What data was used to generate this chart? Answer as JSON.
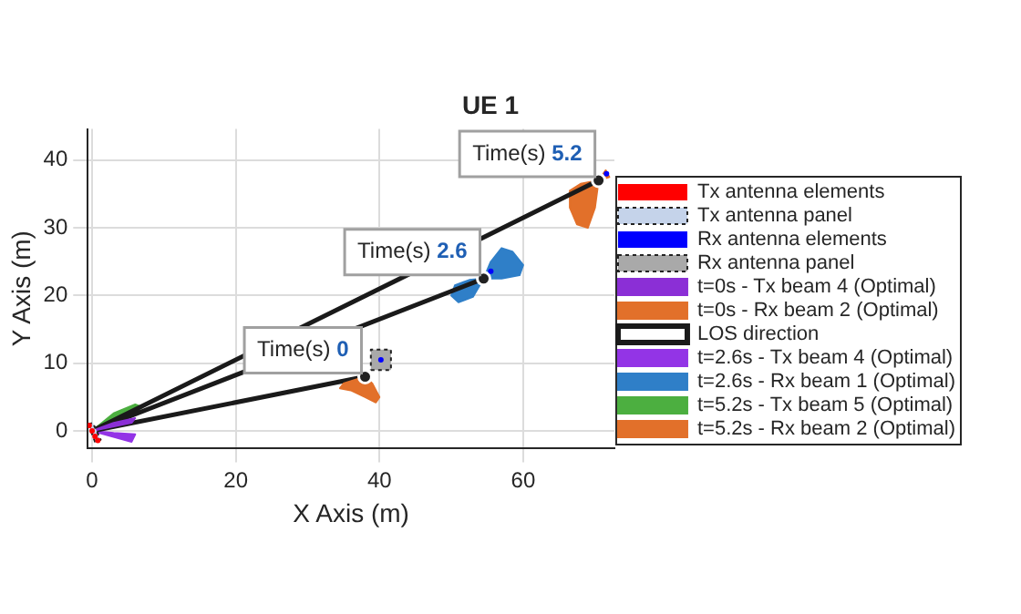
{
  "chart_data": {
    "type": "line",
    "title": "UE 1",
    "xlabel": "X Axis (m)",
    "ylabel": "Y Axis (m)",
    "xlim": [
      -0.6,
      72.7
    ],
    "ylim": [
      -2.5,
      44.6
    ],
    "xticks": [
      0,
      20,
      40,
      60
    ],
    "yticks": [
      0,
      10,
      20,
      30,
      40
    ],
    "grid": true,
    "legend": "right",
    "series": [
      {
        "name": "Tx antenna elements",
        "type": "scatter",
        "marker": "circle",
        "color": "#ff0000",
        "x": [
          -0.4,
          0,
          0.4,
          0.8
        ],
        "values": [
          0.8,
          0,
          -0.8,
          -1.4
        ]
      },
      {
        "name": "Tx antenna panel",
        "type": "area",
        "line_style": "dotted",
        "color": "#c5d3ea",
        "x": [
          -0.5,
          0.1,
          1.2,
          0.4,
          -0.5
        ],
        "values": [
          1,
          1.2,
          -1.3,
          -1.6,
          1
        ]
      },
      {
        "name": "Rx antenna elements",
        "type": "scatter",
        "marker": "circle",
        "color": "#0000ff",
        "x": [
          40.2,
          55.5,
          71.6
        ],
        "values": [
          10.5,
          23.6,
          38
        ]
      },
      {
        "name": "Rx antenna panel",
        "type": "area",
        "line_style": "dotted",
        "color": "#a9a9a9",
        "x": [
          38.8,
          41.6,
          41.6,
          38.8,
          38.8
        ],
        "values": [
          9,
          9,
          12,
          12,
          9
        ]
      },
      {
        "name": "t=0s - Tx beam 4 (Optimal)",
        "type": "area",
        "color": "#8b2fd6",
        "x": [
          0,
          3,
          6,
          5.5,
          0
        ],
        "values": [
          0,
          1.2,
          1.9,
          1.2,
          0
        ]
      },
      {
        "name": "t=0s - Rx beam 2 (Optimal)",
        "type": "area",
        "color": "#e2702a",
        "x": [
          38,
          35,
          34.5,
          36,
          38,
          39.5,
          40,
          39,
          38
        ],
        "values": [
          8,
          7,
          6.3,
          6,
          5,
          4.2,
          5,
          7,
          8
        ]
      },
      {
        "name": "LOS direction",
        "color": "#1a1a1a",
        "x": [
          0,
          38,
          null,
          0,
          54.5,
          null,
          0,
          70.5
        ],
        "values": [
          0,
          8,
          null,
          0,
          22.5,
          null,
          0,
          37
        ]
      },
      {
        "name": "t=2.6s - Tx beam 4 (Optimal)",
        "type": "area",
        "color": "#9334e6",
        "x": [
          0,
          3,
          6,
          5.5,
          0
        ],
        "values": [
          0,
          -0.3,
          -0.5,
          -1.6,
          0
        ]
      },
      {
        "name": "t=2.6s - Rx beam 1 (Optimal)",
        "type": "area",
        "color": "#2f7fc8",
        "x": [
          54.5,
          52.5,
          50.5,
          50,
          51,
          53,
          54.5,
          55.5,
          57,
          58.5,
          60,
          59.5,
          57,
          54.5
        ],
        "values": [
          22.5,
          22.3,
          21.5,
          20,
          19,
          19.8,
          22.5,
          25,
          27,
          26.5,
          24.5,
          23,
          22.5,
          22.5
        ]
      },
      {
        "name": "t=5.2s - Tx beam 5 (Optimal)",
        "type": "area",
        "color": "#4caf40",
        "x": [
          0,
          3,
          6,
          7,
          5,
          0
        ],
        "values": [
          0,
          2.6,
          3.9,
          3.5,
          2.4,
          0
        ]
      },
      {
        "name": "t=5.2s - Rx beam 2 (Optimal)",
        "type": "area",
        "color": "#e2702a",
        "x": [
          70.5,
          68,
          66.5,
          66.5,
          67.5,
          69,
          70,
          70.5,
          72,
          71.5,
          70.5
        ],
        "values": [
          37,
          36.5,
          35.5,
          33,
          30.5,
          30,
          33,
          37,
          37.5,
          38.5,
          37
        ]
      },
      {
        "type": "scatter",
        "marker": "circle",
        "color": "#222222",
        "x": [
          38,
          54.5,
          70.5
        ],
        "values": [
          8,
          22.5,
          37
        ]
      }
    ],
    "annotations": [
      {
        "text": "Time(s) 0",
        "x": 38,
        "y": 8
      },
      {
        "text": "Time(s) 2.6",
        "x": 54.5,
        "y": 22.5
      },
      {
        "text": "Time(s) 5.2",
        "x": 70.5,
        "y": 37
      }
    ]
  }
}
